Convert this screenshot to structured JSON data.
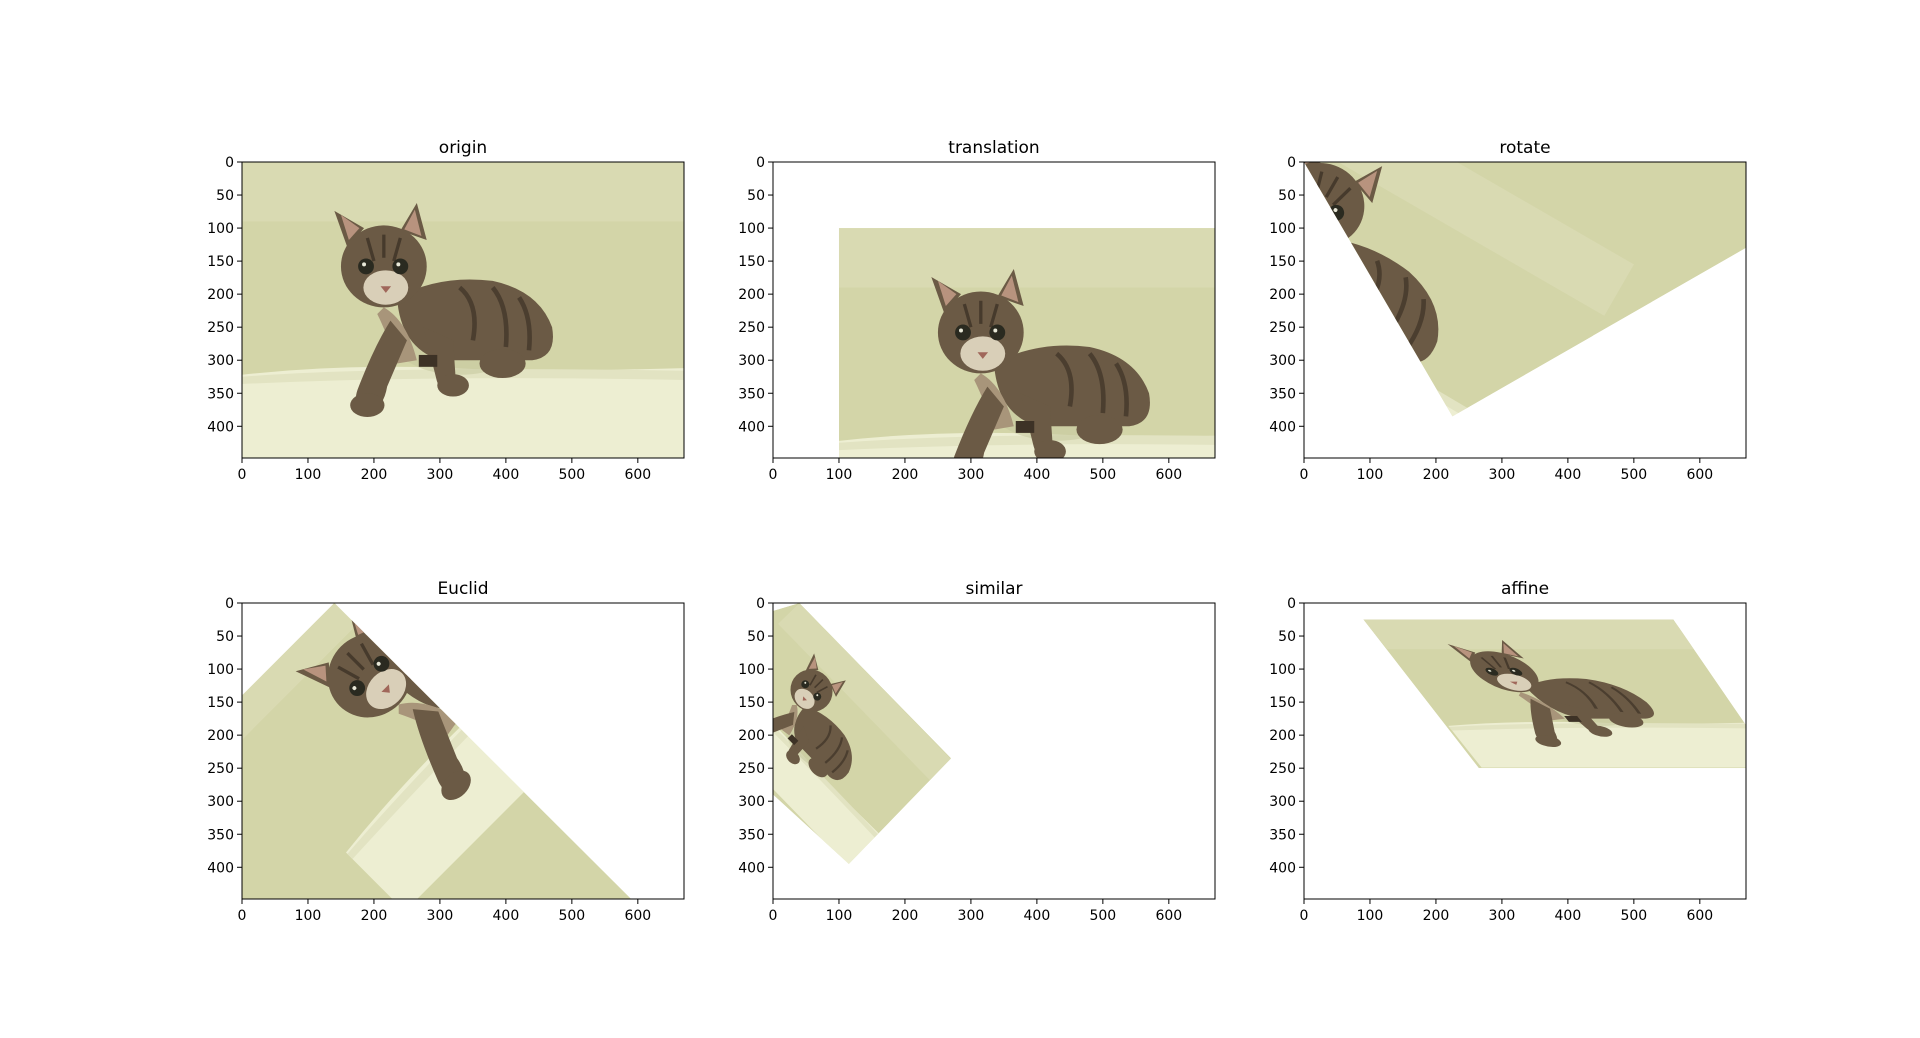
{
  "figure": {
    "background": "#ffffff",
    "colors": {
      "wall": "#d3d5a8",
      "wall_light": "#dfe0bc",
      "floor": "#edeed2",
      "floor_shadow": "#e2e3c2",
      "cat_body": "#6b5a45",
      "cat_dark": "#3d3226",
      "cat_light": "#a8957a",
      "cat_chest": "#d9cfb8",
      "eye": "#2a2a20",
      "axis": "#000000"
    }
  },
  "chart_data": [
    {
      "type": "image",
      "title": "origin",
      "xlim": [
        0,
        670
      ],
      "ylim": [
        448,
        0
      ],
      "xticks": [
        0,
        100,
        200,
        300,
        400,
        500,
        600
      ],
      "yticks": [
        0,
        50,
        100,
        150,
        200,
        250,
        300,
        350,
        400
      ],
      "image_corners": [
        [
          0,
          0
        ],
        [
          670,
          0
        ],
        [
          670,
          448
        ],
        [
          0,
          448
        ]
      ],
      "content_transform": [
        1,
        0,
        0,
        1,
        0,
        0
      ]
    },
    {
      "type": "image",
      "title": "translation",
      "xlim": [
        0,
        670
      ],
      "ylim": [
        448,
        0
      ],
      "xticks": [
        0,
        100,
        200,
        300,
        400,
        500,
        600
      ],
      "yticks": [
        0,
        50,
        100,
        150,
        200,
        250,
        300,
        350,
        400
      ],
      "image_corners": [
        [
          100,
          100
        ],
        [
          670,
          100
        ],
        [
          670,
          448
        ],
        [
          100,
          448
        ]
      ],
      "content_transform": [
        1,
        0,
        0,
        1,
        100,
        100
      ]
    },
    {
      "type": "image",
      "title": "rotate",
      "xlim": [
        0,
        670
      ],
      "ylim": [
        448,
        0
      ],
      "xticks": [
        0,
        100,
        200,
        300,
        400,
        500,
        600
      ],
      "yticks": [
        0,
        50,
        100,
        150,
        200,
        250,
        300,
        350,
        400
      ],
      "image_corners": [
        [
          0,
          0
        ],
        [
          670,
          0
        ],
        [
          670,
          130
        ],
        [
          225,
          385
        ],
        [
          0,
          0
        ]
      ],
      "content_transform": [
        0.866,
        0.5,
        -0.5,
        0.866,
        -80,
        -180
      ]
    },
    {
      "type": "image",
      "title": "Euclid",
      "xlim": [
        0,
        670
      ],
      "ylim": [
        448,
        0
      ],
      "xticks": [
        0,
        100,
        200,
        300,
        400,
        500,
        600
      ],
      "yticks": [
        0,
        50,
        100,
        150,
        200,
        250,
        300,
        350,
        400
      ],
      "image_corners": [
        [
          140,
          0
        ],
        [
          590,
          448
        ],
        [
          0,
          448
        ],
        [
          0,
          140
        ]
      ],
      "content_transform": [
        0.707,
        -0.707,
        0.707,
        0.707,
        -70,
        150
      ]
    },
    {
      "type": "image",
      "title": "similar",
      "xlim": [
        0,
        670
      ],
      "ylim": [
        448,
        0
      ],
      "xticks": [
        0,
        100,
        200,
        300,
        400,
        500,
        600
      ],
      "yticks": [
        0,
        50,
        100,
        150,
        200,
        250,
        300,
        350,
        400
      ],
      "image_corners": [
        [
          40,
          0
        ],
        [
          270,
          235
        ],
        [
          115,
          395
        ],
        [
          0,
          290
        ],
        [
          0,
          12
        ]
      ],
      "content_transform": [
        0.35,
        0.36,
        -0.36,
        0.35,
        40,
        0
      ]
    },
    {
      "type": "image",
      "title": "affine",
      "xlim": [
        0,
        670
      ],
      "ylim": [
        448,
        0
      ],
      "xticks": [
        0,
        100,
        200,
        300,
        400,
        500,
        600
      ],
      "yticks": [
        0,
        50,
        100,
        150,
        200,
        250,
        300,
        350,
        400
      ],
      "image_corners": [
        [
          90,
          25
        ],
        [
          560,
          25
        ],
        [
          670,
          185
        ],
        [
          670,
          250
        ],
        [
          265,
          250
        ]
      ],
      "content_transform": [
        0.7,
        0,
        0.4,
        0.5,
        90,
        25
      ]
    }
  ]
}
